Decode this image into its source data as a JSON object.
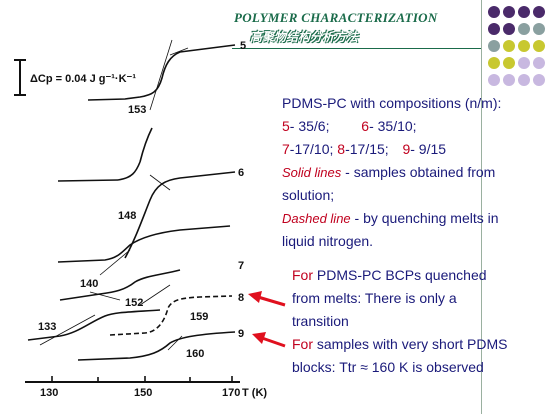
{
  "header": {
    "title": "POLYMER CHARACTERIZATION",
    "subtitle": "高聚物结构分析方法"
  },
  "deco_dot_colors": [
    "#4a2a6a",
    "#8aa0a0",
    "#c8c830",
    "#c8b8e0"
  ],
  "figure": {
    "scale_label": "ΔCp = 0.04 J g⁻¹·K⁻¹",
    "x_ticks": [
      "130",
      "150",
      "170"
    ],
    "x_unit": "T (K)",
    "curve_labels": [
      "5",
      "6",
      "7",
      "8",
      "9"
    ],
    "temp_labels": [
      "153",
      "148",
      "140",
      "152",
      "133",
      "159",
      "160"
    ]
  },
  "info": {
    "line1": "PDMS-PC with compositions (n/m):",
    "c5_num": "5",
    "c5_val": "- 35/6;",
    "c6_num": "6",
    "c6_val": "- 35/10;",
    "c7_num": "7",
    "c7_val": "-17/10;",
    "c8_num": "8",
    "c8_val": "-17/15;",
    "c9_num": "9",
    "c9_val": "- 9/15",
    "solid_label": "Solid lines",
    "solid_text1": " - samples obtained from",
    "solid_text2": "solution;",
    "dashed_label": "Dashed line",
    "dashed_text1": " - by quenching melts in",
    "dashed_text2": "liquid nitrogen."
  },
  "notes": {
    "for1": "For",
    "note1_l1": " PDMS-PC  BCPs quenched",
    "note1_l2": "from melts: There is only a",
    "note1_l3": "transition",
    "for2": "For",
    "note2_l1": " samples with very short PDMS",
    "note2_l2": "blocks:  Ttr ≈ 160 K  is observed"
  }
}
